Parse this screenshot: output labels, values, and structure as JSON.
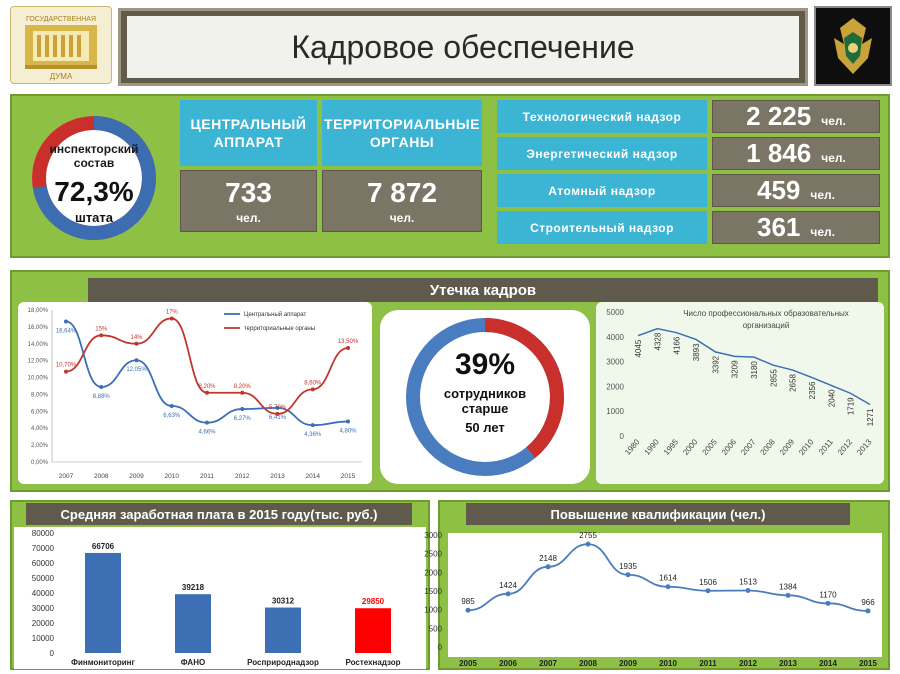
{
  "header": {
    "title": "Кадровое обеспечение",
    "logo_text_top": "ГОСУДАРСТВЕННАЯ",
    "logo_text_bottom": "ДУМА"
  },
  "summary": {
    "donut": {
      "label_top": "инспекторский\nсостав",
      "value": "72,3%",
      "label_bottom": "штата",
      "fraction": 0.723
    },
    "central": {
      "label": "ЦЕНТРАЛЬНЫЙ\nАППАРАТ",
      "value": "733",
      "unit": "чел."
    },
    "territorial": {
      "label": "ТЕРРИТОРИАЛЬНЫЕ\nОРГАНЫ",
      "value": "7 872",
      "unit": "чел."
    },
    "supervision": [
      {
        "label": "Технологический надзор",
        "value": "2 225",
        "unit": "чел."
      },
      {
        "label": "Энергетический надзор",
        "value": "1 846",
        "unit": "чел."
      },
      {
        "label": "Атомный надзор",
        "value": "459",
        "unit": "чел."
      },
      {
        "label": "Строительный надзор",
        "value": "361",
        "unit": "чел."
      }
    ]
  },
  "leak": {
    "banner": "Утечка кадров",
    "older": {
      "value": "39%",
      "label": "сотрудников\nстарше",
      "label2": "50 лет",
      "fraction": 0.39
    }
  },
  "salary_banner": "Средняя заработная плата в 2015 году(тыс. руб.)",
  "training_banner": "Повышение квалификации (чел.)",
  "chart_data": [
    {
      "type": "line",
      "x": [
        "2007",
        "2008",
        "2009",
        "2010",
        "2011",
        "2012",
        "2013",
        "2014",
        "2015"
      ],
      "series": [
        {
          "name": "Центральный аппарат",
          "values": [
            16.64,
            8.88,
            12.05,
            6.63,
            4.66,
            6.27,
            6.41,
            4.36,
            4.8
          ],
          "labels": [
            "16,64%",
            "8,88%",
            "12,05%",
            "6,63%",
            "4,66%",
            "6,27%",
            "6,41%",
            "4,36%",
            "4,80%"
          ],
          "color": "#3d6fb4"
        },
        {
          "name": "территориальные органы",
          "values": [
            10.7,
            15,
            14,
            17,
            8.2,
            8.2,
            5.7,
            8.6,
            13.5
          ],
          "labels": [
            "10,70%",
            "15%",
            "14%",
            "17%",
            "8,20%",
            "8,20%",
            "5,70%",
            "8,60%",
            "13,50%"
          ],
          "color": "#c0362c"
        }
      ],
      "ylim": [
        0,
        18
      ],
      "yticks": [
        "0,00%",
        "2,00%",
        "4,00%",
        "6,00%",
        "8,00%",
        "10,00%",
        "12,00%",
        "14,00%",
        "16,00%",
        "18,00%"
      ]
    },
    {
      "type": "line",
      "title": "Число профессиональных образовательных организаций",
      "x": [
        "1980",
        "1990",
        "1995",
        "2000",
        "2005",
        "2006",
        "2007",
        "2008",
        "2009",
        "2010",
        "2011",
        "2012",
        "2013"
      ],
      "values": [
        4045,
        4328,
        4166,
        3893,
        3392,
        3209,
        3180,
        2855,
        2658,
        2356,
        2040,
        1719,
        1271
      ],
      "ylim": [
        0,
        5000
      ],
      "yticks": [
        "0",
        "1000",
        "2000",
        "3000",
        "4000",
        "5000"
      ]
    },
    {
      "type": "bar",
      "categories": [
        "Финмониторинг",
        "ФАНО",
        "Росприроднадзор",
        "Ростехнадзор"
      ],
      "values": [
        66706,
        39218,
        30312,
        29850
      ],
      "colors": [
        "#3d6fb4",
        "#3d6fb4",
        "#3d6fb4",
        "#ff0000"
      ],
      "ylim": [
        0,
        80000
      ],
      "yticks": [
        "0",
        "10000",
        "20000",
        "30000",
        "40000",
        "50000",
        "60000",
        "70000",
        "80000"
      ]
    },
    {
      "type": "line",
      "x": [
        "2005",
        "2006",
        "2007",
        "2008",
        "2009",
        "2010",
        "2011",
        "2012",
        "2013",
        "2014",
        "2015"
      ],
      "values": [
        985,
        1424,
        2148,
        2755,
        1935,
        1614,
        1506,
        1513,
        1384,
        1170,
        966
      ],
      "ylim": [
        0,
        3000
      ],
      "yticks": [
        "0",
        "500",
        "1000",
        "1500",
        "2000",
        "2500",
        "3000"
      ]
    }
  ]
}
